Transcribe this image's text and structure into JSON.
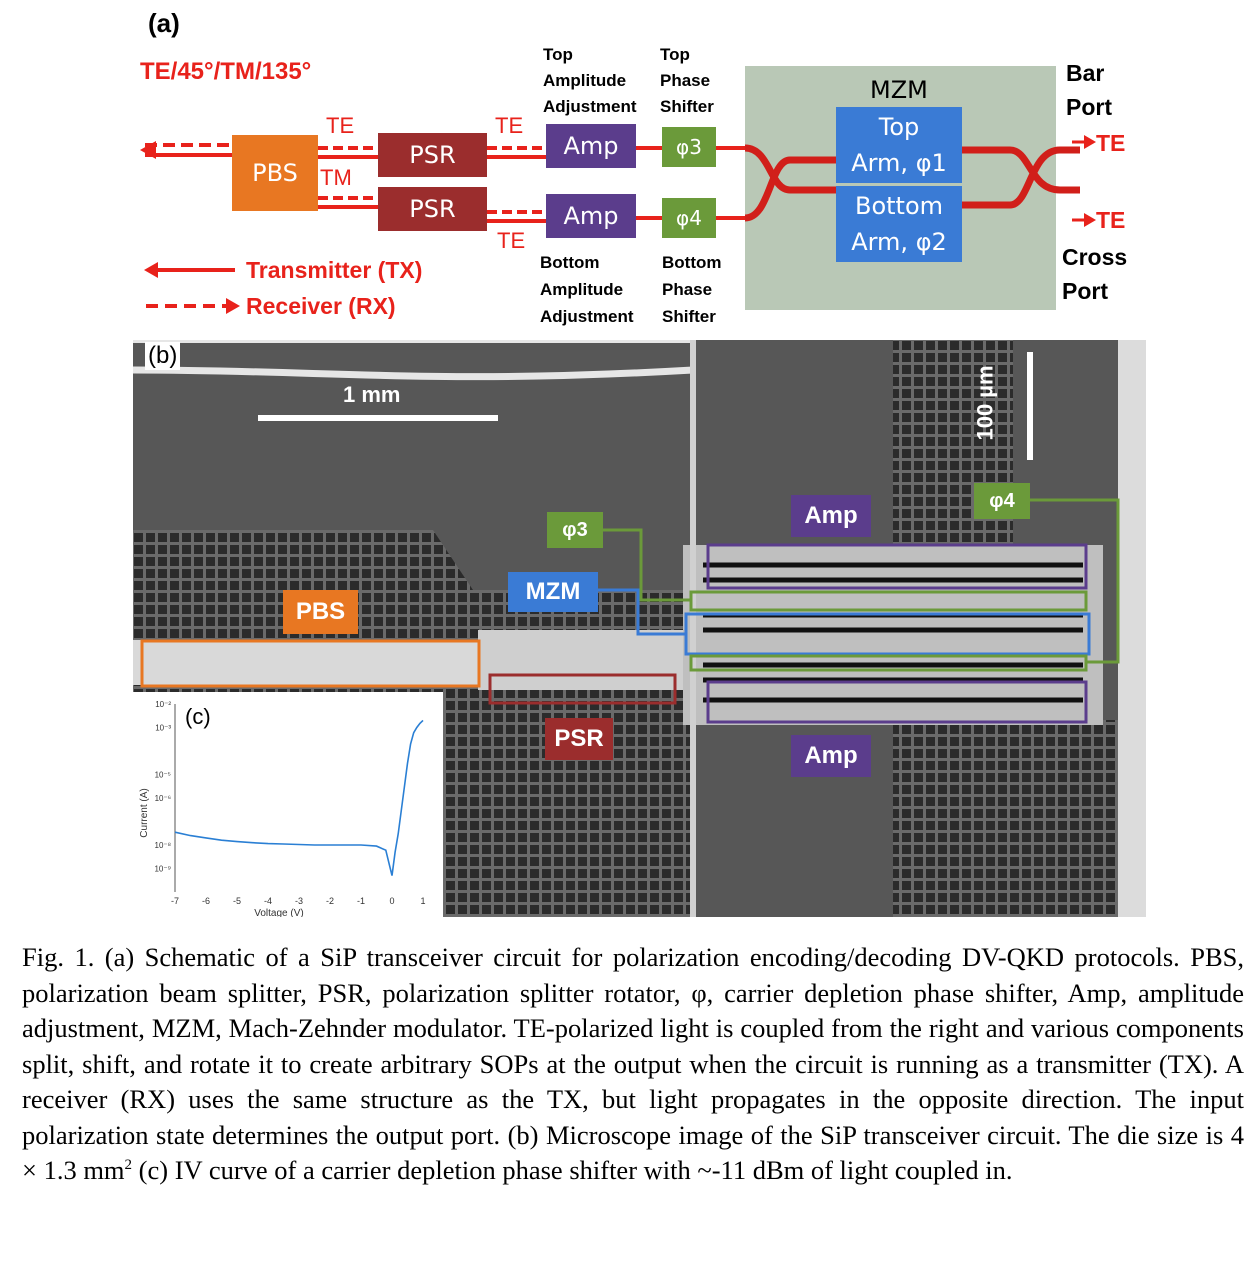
{
  "panel_a": {
    "label": "(a)",
    "polarizations": "TE/45°/TM/135°",
    "pbs": "PBS",
    "psr_top": "PSR",
    "psr_bottom": "PSR",
    "te_1": "TE",
    "tm": "TM",
    "te_2": "TE",
    "te_3": "TE",
    "amp_top": "Amp",
    "amp_bottom": "Amp",
    "phi3": "φ3",
    "phi4": "φ4",
    "top_amp_label": [
      "Top",
      "Amplitude",
      "Adjustment"
    ],
    "top_phase_label": [
      "Top",
      "Phase",
      "Shifter"
    ],
    "bottom_amp_label": [
      "Bottom",
      "Amplitude",
      "Adjustment"
    ],
    "bottom_phase_label": [
      "Bottom",
      "Phase",
      "Shifter"
    ],
    "mzm_title": "MZM",
    "top_arm": [
      "Top",
      "Arm, φ1"
    ],
    "bottom_arm": [
      "Bottom",
      "Arm, φ2"
    ],
    "bar_port": [
      "Bar",
      "Port"
    ],
    "cross_port": [
      "Cross",
      "Port"
    ],
    "te_bar": "TE",
    "te_cross": "TE",
    "legend_tx": "Transmitter (TX)",
    "legend_rx": "Receiver (RX)"
  },
  "panel_b": {
    "label": "(b)",
    "scale_1mm": "1 mm",
    "scale_100um": "100 µm",
    "pbs": "PBS",
    "psr": "PSR",
    "mzm": "MZM",
    "phi3": "φ3",
    "phi4": "φ4",
    "amp_top": "Amp",
    "amp_bottom": "Amp"
  },
  "panel_c": {
    "label": "(c)",
    "xlabel": "Voltage (V)",
    "ylabel": "Current (A)"
  },
  "chart_data": {
    "type": "line",
    "x": [
      -7,
      -6.5,
      -6,
      -5.5,
      -5,
      -4.5,
      -4,
      -3.5,
      -3,
      -2.5,
      -2,
      -1.5,
      -1,
      -0.5,
      -0.2,
      0,
      0.1,
      0.2,
      0.3,
      0.4,
      0.5,
      0.6,
      0.7,
      0.8,
      0.9,
      1.0
    ],
    "y": [
      3.5e-08,
      2.5e-08,
      2e-08,
      1.6e-08,
      1.4e-08,
      1.25e-08,
      1.15e-08,
      1.1e-08,
      1.05e-08,
      1e-08,
      1e-08,
      1e-08,
      1e-08,
      9e-09,
      6e-09,
      5e-10,
      5e-09,
      3e-08,
      3e-07,
      3e-06,
      3e-05,
      0.0002,
      0.0006,
      0.001,
      0.0015,
      0.002
    ],
    "xticks": [
      "-7",
      "-6",
      "-5",
      "-4",
      "-3",
      "-2",
      "-1",
      "0",
      "1"
    ],
    "yticks": [
      "10⁻²",
      "10⁻³",
      "10⁻⁵",
      "10⁻⁶",
      "10⁻⁸",
      "10⁻⁹"
    ],
    "xlim": [
      -7,
      1
    ],
    "ylog": true,
    "color": "#2a7fd4"
  },
  "caption": {
    "text": "Fig. 1. (a) Schematic of a SiP transceiver circuit for polarization encoding/decoding DV-QKD protocols. PBS, polarization beam splitter, PSR, polarization splitter rotator, φ, carrier depletion phase shifter, Amp, amplitude adjustment, MZM, Mach-Zehnder modulator. TE-polarized light is coupled from the right and various components split, shift, and rotate it to create arbitrary SOPs at the output when the circuit is running as a transmitter (TX). A receiver (RX) uses the same structure as the TX, but light propagates in the opposite direction. The input polarization state determines the output port. (b) Microscope image of the SiP transceiver circuit. The die size is 4 × 1.3 mm",
    "sup": "2",
    "text_after": " (c) IV curve of a carrier depletion phase shifter with ~-11 dBm of light coupled in."
  },
  "colors": {
    "red": "#e8221b",
    "pbs_orange": "#e87722",
    "psr_maroon": "#9b2d2d",
    "amp_purple": "#5b3d8c",
    "phase_green": "#6b9a3a",
    "mzm_blue": "#3a7bd5",
    "mzm_bg": "#b9c8b6"
  }
}
